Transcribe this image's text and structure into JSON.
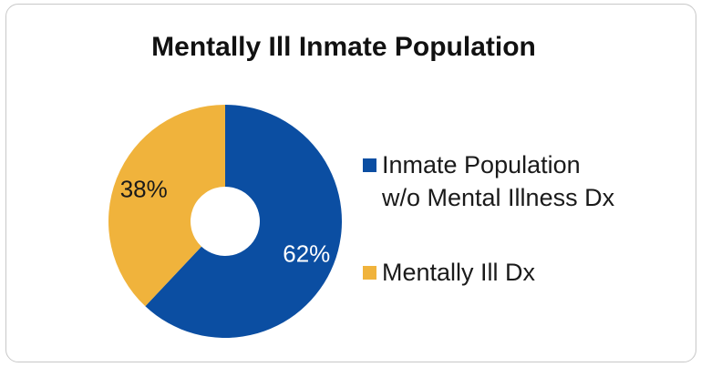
{
  "chart_data": {
    "type": "pie",
    "title": "Mentally Ill Inmate Population",
    "donut": true,
    "slices": [
      {
        "label": "Inmate Population w/o Mental Illness Dx",
        "value": 62,
        "display": "62%",
        "color": "#0b4ea2",
        "text_color": "#ffffff"
      },
      {
        "label": "Mentally Ill Dx",
        "value": 38,
        "display": "38%",
        "color": "#f0b33c",
        "text_color": "#1a1a1a"
      }
    ],
    "legend": {
      "position": "right",
      "entries": [
        {
          "lines": [
            "Inmate Population",
            "w/o Mental Illness Dx"
          ],
          "color": "#0b4ea2"
        },
        {
          "lines": [
            "Mentally Ill Dx"
          ],
          "color": "#f0b33c"
        }
      ]
    }
  }
}
